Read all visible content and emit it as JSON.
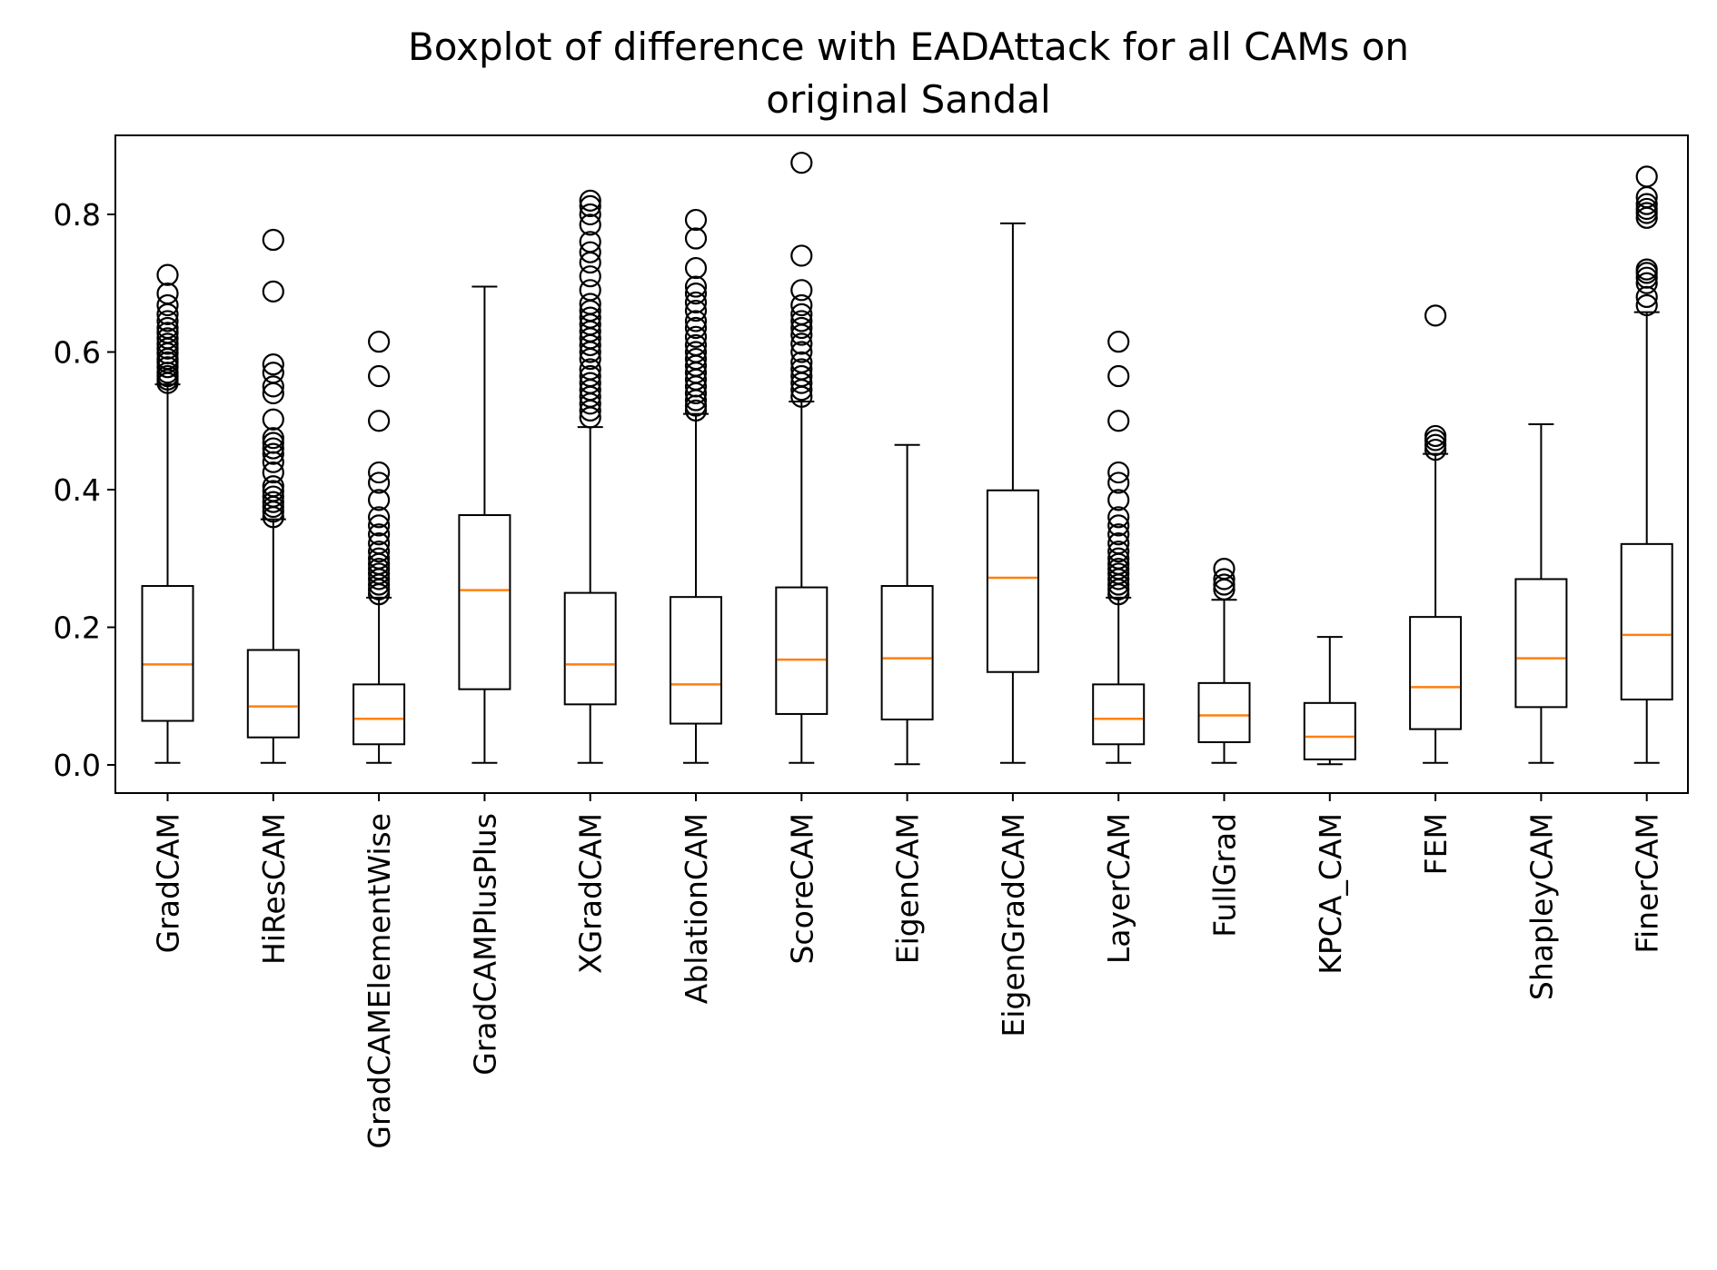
{
  "chart_data": {
    "type": "boxplot",
    "title_lines": [
      "Boxplot of difference with EADAttack for all CAMs on",
      "original Sandal"
    ],
    "xlabel": "",
    "ylabel": "",
    "ylim": [
      -0.04,
      0.92
    ],
    "yticks": [
      0.0,
      0.2,
      0.4,
      0.6,
      0.8
    ],
    "ytick_labels": [
      "0.0",
      "0.2",
      "0.4",
      "0.6",
      "0.8"
    ],
    "grid": false,
    "colors": {
      "box": "#000000",
      "median": "#ff7f0e",
      "outlier": "#000000"
    },
    "categories": [
      "GradCAM",
      "HiResCAM",
      "GradCAMElementWise",
      "GradCAMPlusPlus",
      "XGradCAM",
      "AblationCAM",
      "ScoreCAM",
      "EigenCAM",
      "EigenGradCAM",
      "LayerCAM",
      "FullGrad",
      "KPCA_CAM",
      "FEM",
      "ShapleyCAM",
      "FinerCAM"
    ],
    "boxes": [
      {
        "whislo": 0.003,
        "q1": 0.064,
        "med": 0.146,
        "q3": 0.26,
        "whishi": 0.553,
        "fliers": [
          0.555,
          0.56,
          0.565,
          0.57,
          0.578,
          0.585,
          0.59,
          0.598,
          0.605,
          0.612,
          0.62,
          0.628,
          0.635,
          0.645,
          0.655,
          0.668,
          0.685,
          0.712
        ]
      },
      {
        "whislo": 0.003,
        "q1": 0.04,
        "med": 0.085,
        "q3": 0.167,
        "whishi": 0.357,
        "fliers": [
          0.36,
          0.368,
          0.375,
          0.382,
          0.39,
          0.398,
          0.405,
          0.425,
          0.44,
          0.452,
          0.46,
          0.468,
          0.475,
          0.502,
          0.54,
          0.55,
          0.57,
          0.582,
          0.688,
          0.763
        ]
      },
      {
        "whislo": 0.003,
        "q1": 0.03,
        "med": 0.067,
        "q3": 0.117,
        "whishi": 0.243,
        "fliers": [
          0.248,
          0.255,
          0.262,
          0.27,
          0.278,
          0.285,
          0.292,
          0.3,
          0.31,
          0.322,
          0.335,
          0.348,
          0.36,
          0.385,
          0.41,
          0.425,
          0.5,
          0.565,
          0.615
        ]
      },
      {
        "whislo": 0.003,
        "q1": 0.11,
        "med": 0.254,
        "q3": 0.363,
        "whishi": 0.695,
        "fliers": []
      },
      {
        "whislo": 0.003,
        "q1": 0.088,
        "med": 0.146,
        "q3": 0.25,
        "whishi": 0.491,
        "fliers": [
          0.505,
          0.515,
          0.525,
          0.535,
          0.545,
          0.555,
          0.565,
          0.575,
          0.59,
          0.6,
          0.61,
          0.62,
          0.63,
          0.64,
          0.65,
          0.66,
          0.67,
          0.69,
          0.71,
          0.73,
          0.745,
          0.76,
          0.785,
          0.8,
          0.812,
          0.82
        ]
      },
      {
        "whislo": 0.003,
        "q1": 0.06,
        "med": 0.117,
        "q3": 0.244,
        "whishi": 0.51,
        "fliers": [
          0.515,
          0.522,
          0.53,
          0.54,
          0.55,
          0.56,
          0.57,
          0.58,
          0.59,
          0.6,
          0.61,
          0.622,
          0.635,
          0.645,
          0.66,
          0.672,
          0.685,
          0.695,
          0.722,
          0.765,
          0.792
        ]
      },
      {
        "whislo": 0.003,
        "q1": 0.074,
        "med": 0.153,
        "q3": 0.258,
        "whishi": 0.528,
        "fliers": [
          0.535,
          0.545,
          0.555,
          0.565,
          0.575,
          0.585,
          0.6,
          0.612,
          0.625,
          0.635,
          0.645,
          0.655,
          0.668,
          0.69,
          0.74,
          0.875
        ]
      },
      {
        "whislo": 0.001,
        "q1": 0.066,
        "med": 0.155,
        "q3": 0.26,
        "whishi": 0.465,
        "fliers": []
      },
      {
        "whislo": 0.003,
        "q1": 0.135,
        "med": 0.272,
        "q3": 0.399,
        "whishi": 0.787,
        "fliers": []
      },
      {
        "whislo": 0.003,
        "q1": 0.03,
        "med": 0.067,
        "q3": 0.117,
        "whishi": 0.243,
        "fliers": [
          0.248,
          0.255,
          0.262,
          0.27,
          0.278,
          0.285,
          0.292,
          0.3,
          0.31,
          0.322,
          0.335,
          0.348,
          0.36,
          0.385,
          0.41,
          0.425,
          0.5,
          0.565,
          0.615
        ]
      },
      {
        "whislo": 0.003,
        "q1": 0.033,
        "med": 0.072,
        "q3": 0.119,
        "whishi": 0.24,
        "fliers": [
          0.255,
          0.262,
          0.27,
          0.285
        ]
      },
      {
        "whislo": 0.001,
        "q1": 0.008,
        "med": 0.041,
        "q3": 0.09,
        "whishi": 0.186,
        "fliers": []
      },
      {
        "whislo": 0.003,
        "q1": 0.052,
        "med": 0.113,
        "q3": 0.215,
        "whishi": 0.452,
        "fliers": [
          0.458,
          0.465,
          0.472,
          0.478,
          0.653
        ]
      },
      {
        "whislo": 0.003,
        "q1": 0.084,
        "med": 0.155,
        "q3": 0.27,
        "whishi": 0.495,
        "fliers": []
      },
      {
        "whislo": 0.003,
        "q1": 0.095,
        "med": 0.189,
        "q3": 0.321,
        "whishi": 0.658,
        "fliers": [
          0.668,
          0.68,
          0.7,
          0.708,
          0.715,
          0.72,
          0.795,
          0.802,
          0.808,
          0.815,
          0.825,
          0.855
        ]
      }
    ]
  }
}
